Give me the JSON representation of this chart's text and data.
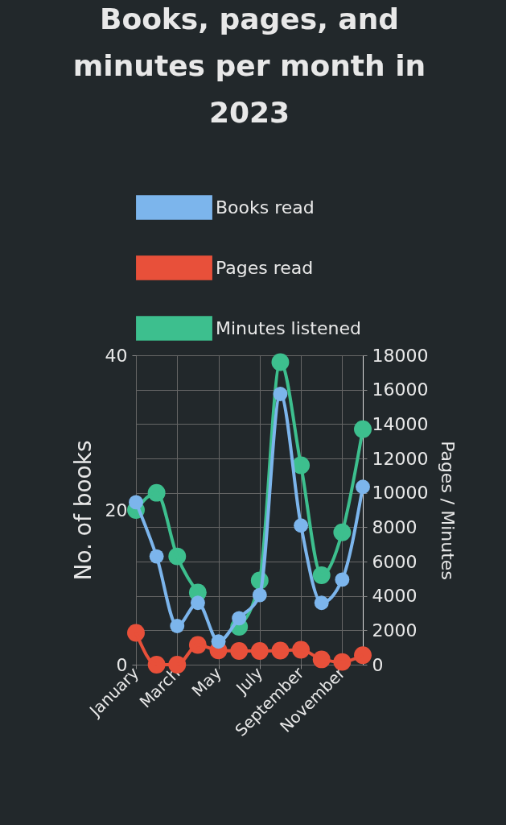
{
  "chart_data": {
    "type": "line",
    "title": "Books, pages, and minutes per month in 2023",
    "categories": [
      "January",
      null,
      "March",
      null,
      "May",
      null,
      "July",
      null,
      "September",
      null,
      "November",
      null
    ],
    "series": [
      {
        "name": "Books read",
        "color": "#7cb5ec",
        "values": [
          21,
          14,
          5,
          8,
          3,
          6,
          9,
          35,
          18,
          8,
          11,
          23
        ]
      },
      {
        "name": "Pages read",
        "color": "#e8503a",
        "axis": "y2",
        "values": [
          1850,
          0,
          0,
          1150,
          830,
          800,
          800,
          820,
          870,
          310,
          160,
          550
        ]
      },
      {
        "name": "Minutes listened",
        "color": "#3dbf8e",
        "axis": "y2",
        "values": [
          9000,
          10000,
          6300,
          4200,
          null,
          2200,
          4900,
          17600,
          11600,
          5200,
          7700,
          13700
        ]
      }
    ],
    "ylabel": "No. of books",
    "y2label": "Pages / Minutes",
    "ylim": [
      0,
      40
    ],
    "yticks": [
      0,
      20,
      40
    ],
    "y2lim": [
      0,
      18000
    ],
    "y2ticks": [
      0,
      2000,
      4000,
      6000,
      8000,
      10000,
      12000,
      14000,
      16000,
      18000
    ],
    "grid": true,
    "legend": "top",
    "marker": "circle",
    "line_style": "solid"
  }
}
